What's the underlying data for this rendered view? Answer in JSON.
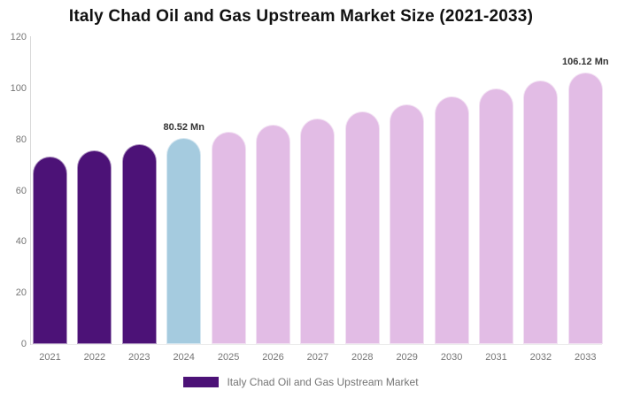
{
  "title": "Italy Chad Oil and Gas Upstream Market Size (2021-2033)",
  "legend": {
    "label": "Italy Chad Oil and Gas Upstream Market",
    "swatch_color": "#4C1277"
  },
  "colors": {
    "dark_purple": "#4C1277",
    "highlight_blue": "#A5CBDF",
    "forecast_pink": "#E2BCE5",
    "axis_line": "#D9D9D9",
    "tick_text": "#757575",
    "data_label_text": "#333333",
    "title_text": "#111111"
  },
  "chart_data": {
    "type": "bar",
    "title": "Italy Chad Oil and Gas Upstream Market Size (2021-2033)",
    "xlabel": "",
    "ylabel": "",
    "unit": "Mn",
    "categories": [
      "2021",
      "2022",
      "2023",
      "2024",
      "2025",
      "2026",
      "2027",
      "2028",
      "2029",
      "2030",
      "2031",
      "2032",
      "2033"
    ],
    "values": [
      73.4,
      75.7,
      78.1,
      80.52,
      83.0,
      85.6,
      88.3,
      91.0,
      93.8,
      96.8,
      99.8,
      102.9,
      106.12
    ],
    "bar_colors": [
      "#4C1277",
      "#4C1277",
      "#4C1277",
      "#A5CBDF",
      "#E2BCE5",
      "#E2BCE5",
      "#E2BCE5",
      "#E2BCE5",
      "#E2BCE5",
      "#E2BCE5",
      "#E2BCE5",
      "#E2BCE5",
      "#E2BCE5"
    ],
    "ylim": [
      0,
      120
    ],
    "yticks": [
      0,
      20,
      40,
      60,
      80,
      100,
      120
    ],
    "grid": false,
    "legend_position": "bottom",
    "data_labels": [
      {
        "category": "2024",
        "text": "80.52 Mn"
      },
      {
        "category": "2033",
        "text": "106.12 Mn"
      }
    ]
  }
}
